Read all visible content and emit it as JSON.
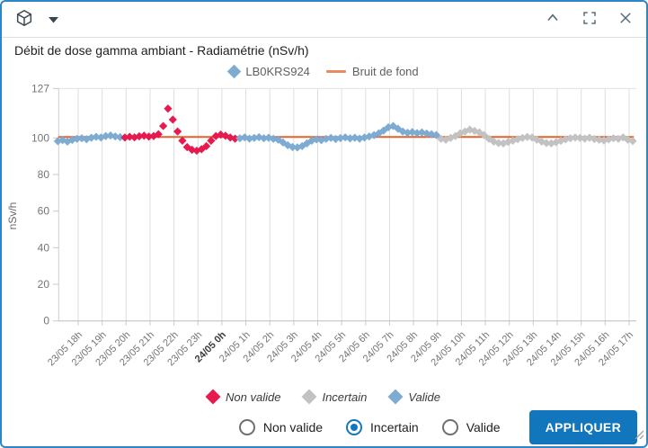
{
  "title": "Débit de dose gamma ambiant - Radiamétrie (nSv/h)",
  "header_icons": [
    "cube-icon",
    "caret-down-icon",
    "collapse-icon",
    "fullscreen-icon",
    "close-icon"
  ],
  "colors": {
    "window_border": "#2f86c6",
    "accent_blue": "#1176bc",
    "valide": "#7dabd2",
    "non_valide": "#e61a4e",
    "incertain": "#c2c2c2",
    "bruit_de_fond_line": "#e4632a",
    "bruit_de_fond_legend": "#e88a62"
  },
  "top_legend": [
    {
      "label": "LB0KRS924",
      "marker": "diamond",
      "color": "#7dabd2"
    },
    {
      "label": "Bruit de fond",
      "marker": "line",
      "color": "#e88a62"
    }
  ],
  "status_legend": [
    {
      "label": "Non valide",
      "color": "#e61a4e"
    },
    {
      "label": "Incertain",
      "color": "#c2c2c2"
    },
    {
      "label": "Valide",
      "color": "#7dabd2"
    }
  ],
  "controls": {
    "radios": [
      {
        "label": "Non valide",
        "selected": false
      },
      {
        "label": "Incertain",
        "selected": true
      },
      {
        "label": "Valide",
        "selected": false
      }
    ],
    "apply_label": "APPLIQUER"
  },
  "chart_data": {
    "type": "scatter",
    "title": "Débit de dose gamma ambiant - Radiamétrie (nSv/h)",
    "ylabel": "nSv/h",
    "ylim": [
      0,
      127
    ],
    "y_ticks": [
      0,
      20,
      40,
      60,
      80,
      100,
      127
    ],
    "grid": "vertical",
    "x_tick_labels": [
      "23/05 18h",
      "23/05 19h",
      "23/05 20h",
      "23/05 21h",
      "23/05 22h",
      "23/05 23h",
      "24/05 0h",
      "24/05 1h",
      "24/05 2h",
      "24/05 3h",
      "24/05 4h",
      "24/05 5h",
      "24/05 6h",
      "24/05 7h",
      "24/05 8h",
      "24/05 9h",
      "24/05 10h",
      "24/05 11h",
      "24/05 12h",
      "24/05 13h",
      "24/05 14h",
      "24/05 15h",
      "24/05 16h",
      "24/05 17h"
    ],
    "bold_tick": "24/05 0h",
    "status_colors": {
      "V": "#7dabd2",
      "N": "#e61a4e",
      "I": "#c2c2c2"
    },
    "status_names": {
      "V": "Valide",
      "N": "Non valide",
      "I": "Incertain"
    },
    "series": [
      {
        "name": "LB0KRS924",
        "marker": "diamond",
        "points_format": [
          "hours_offset_from_23/05_17h",
          "nSv/h",
          "status"
        ],
        "points": [
          [
            0.15,
            98.2,
            "V"
          ],
          [
            0.35,
            98.8,
            "V"
          ],
          [
            0.55,
            98.0,
            "V"
          ],
          [
            0.75,
            98.9,
            "V"
          ],
          [
            0.95,
            99.5,
            "V"
          ],
          [
            1.15,
            99.8,
            "V"
          ],
          [
            1.35,
            99.3,
            "V"
          ],
          [
            1.55,
            100.1,
            "V"
          ],
          [
            1.75,
            100.6,
            "V"
          ],
          [
            1.95,
            100.2,
            "V"
          ],
          [
            2.15,
            101.0,
            "V"
          ],
          [
            2.35,
            101.3,
            "V"
          ],
          [
            2.55,
            100.8,
            "V"
          ],
          [
            2.75,
            100.4,
            "V"
          ],
          [
            2.95,
            100.2,
            "N"
          ],
          [
            3.15,
            100.6,
            "N"
          ],
          [
            3.35,
            100.3,
            "N"
          ],
          [
            3.55,
            100.9,
            "N"
          ],
          [
            3.75,
            101.2,
            "N"
          ],
          [
            3.95,
            100.7,
            "N"
          ],
          [
            4.15,
            101.0,
            "N"
          ],
          [
            4.35,
            102.0,
            "N"
          ],
          [
            4.55,
            106.5,
            "N"
          ],
          [
            4.75,
            116.0,
            "N"
          ],
          [
            4.95,
            110.0,
            "N"
          ],
          [
            5.15,
            103.5,
            "N"
          ],
          [
            5.35,
            98.5,
            "N"
          ],
          [
            5.55,
            95.0,
            "N"
          ],
          [
            5.75,
            93.5,
            "N"
          ],
          [
            5.95,
            93.0,
            "N"
          ],
          [
            6.15,
            93.8,
            "N"
          ],
          [
            6.35,
            95.5,
            "N"
          ],
          [
            6.55,
            98.5,
            "N"
          ],
          [
            6.75,
            101.0,
            "N"
          ],
          [
            6.95,
            101.8,
            "N"
          ],
          [
            7.15,
            101.2,
            "N"
          ],
          [
            7.35,
            100.2,
            "N"
          ],
          [
            7.55,
            99.6,
            "N"
          ],
          [
            7.75,
            99.8,
            "V"
          ],
          [
            7.95,
            100.3,
            "V"
          ],
          [
            8.15,
            99.6,
            "V"
          ],
          [
            8.35,
            100.0,
            "V"
          ],
          [
            8.55,
            100.4,
            "V"
          ],
          [
            8.75,
            99.8,
            "V"
          ],
          [
            8.95,
            100.1,
            "V"
          ],
          [
            9.15,
            99.5,
            "V"
          ],
          [
            9.35,
            99.0,
            "V"
          ],
          [
            9.55,
            97.5,
            "V"
          ],
          [
            9.75,
            96.0,
            "V"
          ],
          [
            9.95,
            95.0,
            "V"
          ],
          [
            10.15,
            94.8,
            "V"
          ],
          [
            10.35,
            95.5,
            "V"
          ],
          [
            10.55,
            97.0,
            "V"
          ],
          [
            10.75,
            98.5,
            "V"
          ],
          [
            10.95,
            99.2,
            "V"
          ],
          [
            11.15,
            98.8,
            "V"
          ],
          [
            11.35,
            99.5,
            "V"
          ],
          [
            11.55,
            100.0,
            "V"
          ],
          [
            11.75,
            99.4,
            "V"
          ],
          [
            11.95,
            99.9,
            "V"
          ],
          [
            12.15,
            100.3,
            "V"
          ],
          [
            12.35,
            99.7,
            "V"
          ],
          [
            12.55,
            100.1,
            "V"
          ],
          [
            12.75,
            99.6,
            "V"
          ],
          [
            12.95,
            100.2,
            "V"
          ],
          [
            13.15,
            100.8,
            "V"
          ],
          [
            13.35,
            101.5,
            "V"
          ],
          [
            13.55,
            102.5,
            "V"
          ],
          [
            13.75,
            104.0,
            "V"
          ],
          [
            13.95,
            105.8,
            "V"
          ],
          [
            14.15,
            106.5,
            "V"
          ],
          [
            14.35,
            105.0,
            "V"
          ],
          [
            14.55,
            103.5,
            "V"
          ],
          [
            14.75,
            102.8,
            "V"
          ],
          [
            14.95,
            103.2,
            "V"
          ],
          [
            15.15,
            102.6,
            "V"
          ],
          [
            15.35,
            103.0,
            "V"
          ],
          [
            15.55,
            102.4,
            "V"
          ],
          [
            15.75,
            102.0,
            "V"
          ],
          [
            15.95,
            101.6,
            "V"
          ],
          [
            16.15,
            99.5,
            "I"
          ],
          [
            16.35,
            99.0,
            "I"
          ],
          [
            16.55,
            100.0,
            "I"
          ],
          [
            16.75,
            101.0,
            "I"
          ],
          [
            16.95,
            102.5,
            "I"
          ],
          [
            17.15,
            103.5,
            "I"
          ],
          [
            17.35,
            104.5,
            "I"
          ],
          [
            17.55,
            103.8,
            "I"
          ],
          [
            17.75,
            103.0,
            "I"
          ],
          [
            17.95,
            101.5,
            "I"
          ],
          [
            18.15,
            99.5,
            "I"
          ],
          [
            18.35,
            98.0,
            "I"
          ],
          [
            18.55,
            97.2,
            "I"
          ],
          [
            18.75,
            97.0,
            "I"
          ],
          [
            18.95,
            97.8,
            "I"
          ],
          [
            19.15,
            98.5,
            "I"
          ],
          [
            19.35,
            99.3,
            "I"
          ],
          [
            19.55,
            100.0,
            "I"
          ],
          [
            19.75,
            100.5,
            "I"
          ],
          [
            19.95,
            100.2,
            "I"
          ],
          [
            20.15,
            99.0,
            "I"
          ],
          [
            20.35,
            98.0,
            "I"
          ],
          [
            20.55,
            97.2,
            "I"
          ],
          [
            20.75,
            97.0,
            "I"
          ],
          [
            20.95,
            97.6,
            "I"
          ],
          [
            21.15,
            98.4,
            "I"
          ],
          [
            21.35,
            99.2,
            "I"
          ],
          [
            21.55,
            99.8,
            "I"
          ],
          [
            21.75,
            100.2,
            "I"
          ],
          [
            21.95,
            100.0,
            "I"
          ],
          [
            22.15,
            99.6,
            "I"
          ],
          [
            22.35,
            100.1,
            "I"
          ],
          [
            22.55,
            99.4,
            "I"
          ],
          [
            22.75,
            99.0,
            "I"
          ],
          [
            22.95,
            98.6,
            "I"
          ],
          [
            23.15,
            99.2,
            "I"
          ],
          [
            23.35,
            99.8,
            "I"
          ],
          [
            23.55,
            99.5,
            "I"
          ],
          [
            23.75,
            100.3,
            "I"
          ],
          [
            23.95,
            99.0,
            "I"
          ],
          [
            24.15,
            98.3,
            "I"
          ]
        ]
      },
      {
        "name": "Bruit de fond",
        "type": "line",
        "color": "#e4632a",
        "points": [
          [
            0.17,
            100.5
          ],
          [
            24.2,
            100.5
          ]
        ]
      }
    ]
  }
}
